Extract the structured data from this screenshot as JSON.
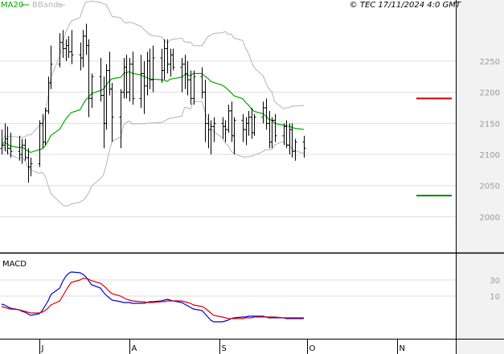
{
  "header": {
    "legend_ma": "MA20",
    "legend_bb": "BBands",
    "copyright": "© TEC 17/11/2024 4:0 GMT"
  },
  "colors": {
    "background": "#ffffff",
    "grid": "#dddddd",
    "axis_panel": "#f2f2f2",
    "price_bar": "#000000",
    "ma20": "#00aa00",
    "bbands": "#b4b4b4",
    "resistance": "#cc0000",
    "support": "#008800",
    "macd": "#0000dd",
    "signal": "#dd0000"
  },
  "chart_data": [
    {
      "type": "ohlc",
      "title": "",
      "xlabel": "",
      "ylabel": "",
      "ylim": [
        1945,
        2330
      ],
      "grid": true,
      "y_ticks": [
        2000,
        2050,
        2100,
        2150,
        2200,
        2250
      ],
      "x_labels": [
        {
          "label": "J",
          "date": "2024-07-01"
        },
        {
          "label": "A",
          "date": "2024-08-01"
        },
        {
          "label": "S",
          "date": "2024-09-01"
        },
        {
          "label": "O",
          "date": "2024-10-01"
        },
        {
          "label": "N",
          "date": "2024-11-01"
        }
      ],
      "levels": [
        {
          "name": "resistance",
          "value": 2190,
          "label": "2190"
        },
        {
          "name": "support",
          "value": 2034,
          "label": "2034"
        }
      ],
      "ohlc": [
        [
          2110,
          2140,
          2100,
          2115
        ],
        [
          2115,
          2150,
          2105,
          2125
        ],
        [
          2125,
          2145,
          2100,
          2110
        ],
        [
          2110,
          2135,
          2095,
          2105
        ],
        [
          2105,
          2130,
          2090,
          2100
        ],
        [
          2100,
          2125,
          2085,
          2115
        ],
        [
          2115,
          2125,
          2090,
          2095
        ],
        [
          2095,
          2110,
          2055,
          2080
        ],
        [
          2080,
          2095,
          2065,
          2085
        ],
        [
          2085,
          2155,
          2080,
          2150
        ],
        [
          2150,
          2165,
          2110,
          2120
        ],
        [
          2120,
          2175,
          2115,
          2170
        ],
        [
          2170,
          2225,
          2165,
          2215
        ],
        [
          2215,
          2275,
          2205,
          2245
        ],
        [
          2245,
          2295,
          2240,
          2280
        ],
        [
          2280,
          2300,
          2255,
          2270
        ],
        [
          2270,
          2285,
          2250,
          2275
        ],
        [
          2275,
          2290,
          2255,
          2265
        ],
        [
          2265,
          2300,
          2245,
          2260
        ],
        [
          2260,
          2280,
          2235,
          2255
        ],
        [
          2255,
          2300,
          2240,
          2290
        ],
        [
          2290,
          2310,
          2260,
          2275
        ],
        [
          2275,
          2285,
          2160,
          2190
        ],
        [
          2190,
          2230,
          2175,
          2225
        ],
        [
          2225,
          2255,
          2185,
          2195
        ],
        [
          2195,
          2225,
          2110,
          2150
        ],
        [
          2150,
          2245,
          2140,
          2235
        ],
        [
          2235,
          2265,
          2195,
          2205
        ],
        [
          2205,
          2215,
          2120,
          2160
        ],
        [
          2160,
          2205,
          2110,
          2200
        ],
        [
          2200,
          2255,
          2190,
          2240
        ],
        [
          2240,
          2260,
          2190,
          2200
        ],
        [
          2200,
          2255,
          2185,
          2245
        ],
        [
          2245,
          2265,
          2180,
          2190
        ],
        [
          2190,
          2260,
          2175,
          2230
        ],
        [
          2230,
          2250,
          2165,
          2210
        ],
        [
          2210,
          2265,
          2195,
          2250
        ],
        [
          2250,
          2270,
          2205,
          2220
        ],
        [
          2220,
          2275,
          2200,
          2255
        ],
        [
          2255,
          2270,
          2215,
          2235
        ],
        [
          2235,
          2285,
          2220,
          2270
        ],
        [
          2270,
          2285,
          2230,
          2245
        ],
        [
          2245,
          2270,
          2225,
          2260
        ],
        [
          2260,
          2270,
          2235,
          2240
        ],
        [
          2240,
          2255,
          2200,
          2245
        ],
        [
          2245,
          2260,
          2205,
          2230
        ],
        [
          2230,
          2250,
          2195,
          2220
        ],
        [
          2220,
          2235,
          2180,
          2190
        ],
        [
          2190,
          2235,
          2180,
          2225
        ],
        [
          2225,
          2240,
          2190,
          2200
        ],
        [
          2200,
          2220,
          2120,
          2150
        ],
        [
          2150,
          2165,
          2110,
          2140
        ],
        [
          2140,
          2155,
          2100,
          2145
        ],
        [
          2145,
          2160,
          2120,
          2150
        ],
        [
          2150,
          2160,
          2125,
          2145
        ],
        [
          2145,
          2155,
          2120,
          2140
        ],
        [
          2140,
          2180,
          2135,
          2170
        ],
        [
          2170,
          2185,
          2120,
          2130
        ],
        [
          2130,
          2160,
          2100,
          2155
        ],
        [
          2155,
          2165,
          2120,
          2140
        ],
        [
          2140,
          2160,
          2115,
          2150
        ],
        [
          2150,
          2170,
          2130,
          2160
        ],
        [
          2160,
          2175,
          2125,
          2135
        ],
        [
          2135,
          2165,
          2130,
          2160
        ],
        [
          2160,
          2185,
          2150,
          2175
        ],
        [
          2175,
          2190,
          2140,
          2150
        ],
        [
          2150,
          2170,
          2110,
          2120
        ],
        [
          2120,
          2160,
          2110,
          2155
        ],
        [
          2155,
          2165,
          2120,
          2130
        ],
        [
          2130,
          2150,
          2115,
          2145
        ],
        [
          2145,
          2155,
          2110,
          2115
        ],
        [
          2115,
          2150,
          2100,
          2140
        ],
        [
          2140,
          2150,
          2095,
          2105
        ],
        [
          2105,
          2125,
          2090,
          2120
        ],
        [
          2120,
          2130,
          2095,
          2110
        ]
      ]
    },
    {
      "type": "line",
      "title": "MACD",
      "xlabel": "",
      "ylabel": "",
      "ylim": [
        -40,
        60
      ],
      "grid": true,
      "y_ticks": [
        10,
        30
      ],
      "series": [],
      "series_values": [
        {
          "key": "macd",
          "values": [
            0,
            -1,
            -3,
            -5,
            -7,
            -9,
            -10,
            -12,
            -14,
            -12,
            -8,
            -2,
            4,
            12,
            20,
            28,
            34,
            38,
            40,
            39,
            37,
            34,
            29,
            24,
            20,
            15,
            11,
            8,
            5,
            3,
            2,
            2,
            2,
            1,
            1,
            1,
            2,
            3,
            3,
            4,
            5,
            6,
            5,
            4,
            2,
            0,
            -2,
            -4,
            -6,
            -8,
            -12,
            -16,
            -20,
            -22,
            -22,
            -21,
            -20,
            -18,
            -17,
            -16,
            -16,
            -15,
            -15,
            -15,
            -15,
            -16,
            -17,
            -17,
            -17,
            -17,
            -18,
            -18,
            -18,
            -18,
            -18
          ]
        },
        {
          "key": "signal",
          "values": [
            -3,
            -4,
            -5,
            -6,
            -7,
            -8,
            -9,
            -10,
            -11,
            -11,
            -10,
            -8,
            -5,
            -1,
            4,
            10,
            16,
            22,
            27,
            30,
            32,
            32,
            31,
            29,
            26,
            23,
            20,
            16,
            13,
            10,
            8,
            6,
            5,
            4,
            3,
            3,
            2,
            2,
            2,
            3,
            3,
            4,
            4,
            4,
            4,
            3,
            2,
            1,
            -1,
            -3,
            -5,
            -8,
            -11,
            -14,
            -16,
            -17,
            -18,
            -18,
            -18,
            -18,
            -17,
            -17,
            -17,
            -16,
            -16,
            -16,
            -16,
            -16,
            -16,
            -17,
            -17,
            -17,
            -17,
            -17,
            -17
          ]
        }
      ]
    }
  ]
}
